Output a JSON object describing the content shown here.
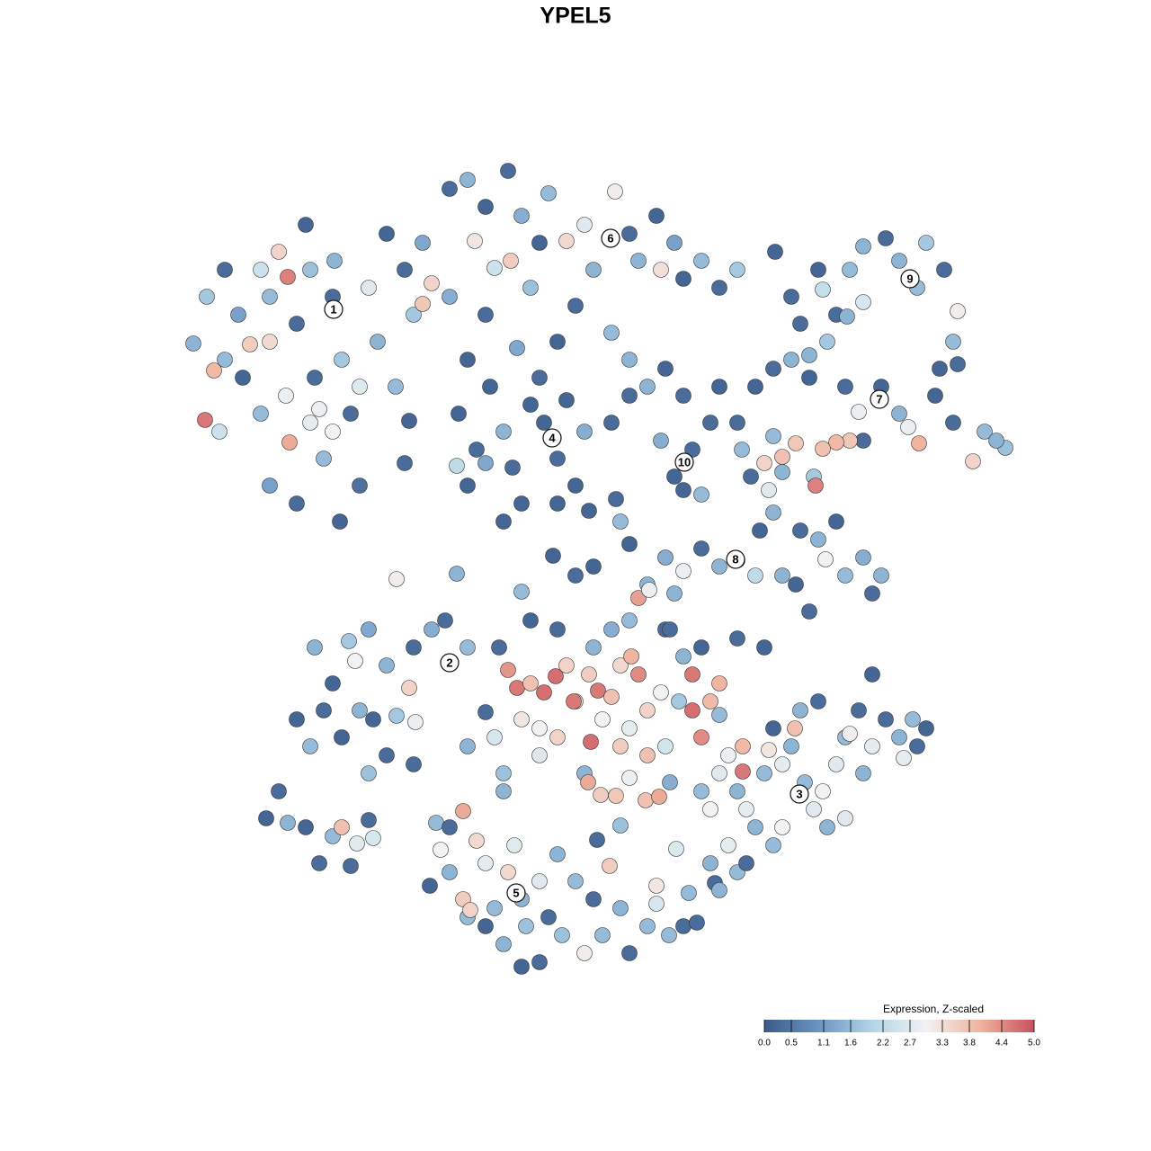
{
  "chart_data": {
    "type": "scatter",
    "title": "YPEL5",
    "xlim": [
      180,
      1140
    ],
    "ylim": [
      1120,
      160
    ],
    "x": [
      215,
      230,
      238,
      228,
      244,
      250,
      265,
      270,
      278,
      290,
      300,
      300,
      310,
      320,
      318,
      322,
      330,
      340,
      345,
      350,
      355,
      360,
      330,
      370,
      372,
      380,
      390,
      400,
      410,
      420,
      430,
      440,
      450,
      460,
      470,
      378,
      300,
      290,
      345,
      370,
      400,
      250,
      480,
      470,
      500,
      520,
      540,
      565,
      580,
      600,
      610,
      630,
      650,
      660,
      684,
      700,
      710,
      730,
      735,
      750,
      760,
      780,
      800,
      820,
      528,
      550,
      568,
      500,
      540,
      590,
      620,
      680,
      700,
      640,
      520,
      575,
      510,
      530,
      520,
      545,
      560,
      570,
      580,
      600,
      605,
      620,
      630,
      640,
      650,
      560,
      590,
      540,
      508,
      620,
      700,
      720,
      740,
      680,
      450,
      455,
      441,
      508,
      580,
      615,
      690,
      700,
      655,
      685,
      735,
      750,
      770,
      780,
      760,
      790,
      800,
      820,
      760,
      862,
      880,
      910,
      915,
      930,
      945,
      960,
      960,
      985,
      1000,
      1020,
      1030,
      1050,
      1065,
      1060,
      1065,
      1045,
      942,
      890,
      900,
      840,
      860,
      880,
      900,
      920,
      940,
      955,
      980,
      1000,
      1010,
      1022,
      1040,
      1060,
      1082,
      1095,
      1118,
      1108,
      960,
      945,
      930,
      915,
      885,
      870,
      860,
      825,
      835,
      850,
      860,
      845,
      855,
      870,
      905,
      907,
      890,
      910,
      918,
      930,
      940,
      960,
      970,
      980,
      900,
      885,
      870,
      820,
      800,
      780,
      760,
      740,
      840,
      350,
      370,
      388,
      395,
      410,
      430,
      455,
      460,
      480,
      495,
      520,
      330,
      345,
      360,
      380,
      400,
      415,
      441,
      462,
      410,
      430,
      460,
      296,
      310,
      320,
      340,
      355,
      370,
      380,
      397,
      410,
      415,
      390,
      565,
      575,
      590,
      605,
      618,
      630,
      640,
      655,
      665,
      680,
      690,
      702,
      710,
      720,
      735,
      755,
      770,
      770,
      790,
      800,
      800,
      760,
      580,
      600,
      620,
      638,
      657,
      670,
      690,
      700,
      720,
      740,
      780,
      810,
      826,
      826,
      600,
      560,
      550,
      520,
      540,
      555,
      590,
      620,
      660,
      680,
      700,
      740,
      780,
      820,
      850,
      640,
      660,
      720,
      710,
      722,
      750,
      745,
      650,
      654,
      668,
      685,
      700,
      718,
      733,
      745,
      780,
      790,
      800,
      820,
      830,
      840,
      850,
      855,
      870,
      880,
      884,
      895,
      905,
      915,
      920,
      930,
      940,
      945,
      955,
      960,
      970,
      970,
      985,
      1000,
      1005,
      1015,
      1020,
      1030,
      870,
      860,
      810,
      790,
      795,
      820,
      830,
      910,
      890,
      860,
      940,
      485,
      490,
      500,
      515,
      515,
      530,
      540,
      550,
      560,
      565,
      572,
      580,
      585,
      600,
      610,
      620,
      625,
      640,
      650,
      660,
      670,
      678,
      690,
      700,
      720,
      730,
      744,
      760,
      775,
      600,
      580,
      560,
      540,
      520,
      500,
      478,
      523,
      690,
      664,
      730,
      766,
      752,
      800
    ],
    "y": [
      382,
      330,
      412,
      467,
      480,
      300,
      350,
      420,
      383,
      300,
      330,
      380,
      280,
      308,
      440,
      492,
      360,
      250,
      300,
      420,
      455,
      510,
      560,
      330,
      290,
      400,
      460,
      540,
      320,
      380,
      260,
      430,
      300,
      350,
      270,
      580,
      540,
      460,
      470,
      480,
      430,
      400,
      315,
      338,
      210,
      200,
      230,
      190,
      240,
      270,
      215,
      268,
      250,
      300,
      213,
      260,
      290,
      240,
      300,
      270,
      310,
      290,
      320,
      300,
      268,
      298,
      290,
      330,
      350,
      320,
      380,
      370,
      400,
      340,
      400,
      387,
      460,
      500,
      540,
      430,
      480,
      520,
      560,
      420,
      470,
      510,
      445,
      540,
      480,
      580,
      450,
      515,
      518,
      560,
      440,
      430,
      410,
      470,
      515,
      468,
      644,
      638,
      658,
      618,
      580,
      605,
      568,
      555,
      490,
      530,
      500,
      550,
      545,
      470,
      430,
      470,
      440,
      280,
      330,
      300,
      322,
      350,
      300,
      274,
      336,
      265,
      290,
      320,
      270,
      300,
      346,
      380,
      405,
      410,
      352,
      360,
      395,
      430,
      410,
      400,
      420,
      380,
      430,
      458,
      430,
      460,
      475,
      493,
      440,
      470,
      513,
      480,
      498,
      490,
      490,
      490,
      492,
      499,
      493,
      508,
      485,
      500,
      530,
      515,
      570,
      590,
      545,
      525,
      530,
      540,
      590,
      600,
      622,
      580,
      640,
      620,
      660,
      640,
      680,
      650,
      640,
      623,
      630,
      610,
      635,
      620,
      640,
      720,
      760,
      713,
      735,
      700,
      740,
      765,
      720,
      700,
      690,
      720,
      800,
      830,
      790,
      820,
      790,
      800,
      796,
      803,
      860,
      840,
      850,
      910,
      880,
      915,
      920,
      960,
      930,
      920,
      938,
      912,
      932,
      963,
      745,
      765,
      760,
      770,
      752,
      740,
      780,
      750,
      768,
      775,
      740,
      730,
      750,
      790,
      770,
      780,
      750,
      790,
      780,
      795,
      760,
      730,
      800,
      810,
      820,
      780,
      825,
      800,
      830,
      810,
      840,
      830,
      820,
      840,
      830,
      858,
      840,
      860,
      820,
      830,
      792,
      720,
      690,
      700,
      720,
      700,
      690,
      700,
      720,
      710,
      720,
      640,
      630,
      650,
      665,
      656,
      660,
      700,
      860,
      870,
      884,
      885,
      865,
      890,
      886,
      870,
      880,
      900,
      860,
      880,
      900,
      920,
      860,
      834,
      850,
      830,
      810,
      870,
      900,
      880,
      920,
      850,
      820,
      816,
      790,
      860,
      830,
      750,
      800,
      820,
      843,
      800,
      830,
      810,
      920,
      940,
      940,
      960,
      982,
      970,
      960,
      780,
      790,
      810,
      910,
      915,
      945,
      970,
      902,
      1000,
      935,
      960,
      1010,
      880,
      970,
      940,
      1000,
      1030,
      980,
      1020,
      950,
      1040,
      980,
      1060,
      1000,
      1040,
      963,
      1010,
      1060,
      1030,
      985,
      1040,
      1030,
      1026,
      1070,
      1075,
      1050,
      1030,
      1020,
      920,
      985,
      1012,
      918,
      934,
      1005,
      993,
      944,
      990
    ],
    "values": [
      1.5,
      1.8,
      3.9,
      4.6,
      2.4,
      0.3,
      1.2,
      0.2,
      3.6,
      2.4,
      1.6,
      3.4,
      3.5,
      4.5,
      2.9,
      4.1,
      0.3,
      0.2,
      1.7,
      0.3,
      2.9,
      1.6,
      0.3,
      0.3,
      1.5,
      1.8,
      0.3,
      0.4,
      2.7,
      1.5,
      0.2,
      1.6,
      0.3,
      1.8,
      1.3,
      0.2,
      1.2,
      1.6,
      2.8,
      3.0,
      2.7,
      1.6,
      3.5,
      3.7,
      0.3,
      1.5,
      0.2,
      0.3,
      1.4,
      0.2,
      1.6,
      3.4,
      2.7,
      1.5,
      3.1,
      0.3,
      1.5,
      0.2,
      3.3,
      1.2,
      0.2,
      1.6,
      0.3,
      1.8,
      3.2,
      2.4,
      3.6,
      1.4,
      0.3,
      1.7,
      0.2,
      1.6,
      1.5,
      0.3,
      0.2,
      1.3,
      0.2,
      0.3,
      0.2,
      0.2,
      1.5,
      0.3,
      0.2,
      0.3,
      0.2,
      0.3,
      0.2,
      0.2,
      1.4,
      0.2,
      0.2,
      1.3,
      2.2,
      0.2,
      0.3,
      1.5,
      0.2,
      0.3,
      0.3,
      0.2,
      3.1,
      1.5,
      1.6,
      0.2,
      1.6,
      0.2,
      0.2,
      0.3,
      1.4,
      0.2,
      0.3,
      1.6,
      0.2,
      0.3,
      0.2,
      0.3,
      0.3,
      0.2,
      0.3,
      0.2,
      2.3,
      0.3,
      1.6,
      1.5,
      2.6,
      0.3,
      1.5,
      1.6,
      1.8,
      0.3,
      3.1,
      1.6,
      0.3,
      0.2,
      1.5,
      0.3,
      1.5,
      0.2,
      0.3,
      1.5,
      0.2,
      1.8,
      0.3,
      2.9,
      0.2,
      1.5,
      2.9,
      4.0,
      0.2,
      0.3,
      3.5,
      1.6,
      1.7,
      1.5,
      0.3,
      3.7,
      3.9,
      3.8,
      3.7,
      3.8,
      1.6,
      1.6,
      0.3,
      3.5,
      1.5,
      0.2,
      2.7,
      1.5,
      1.8,
      4.5,
      0.3,
      1.5,
      3.0,
      0.2,
      1.6,
      1.4,
      0.3,
      1.5,
      0.3,
      0.2,
      1.5,
      1.7,
      1.5,
      0.3,
      2.9,
      1.4,
      2.2,
      1.5,
      0.2,
      1.8,
      3.0,
      1.3,
      1.5,
      3.5,
      0.3,
      1.4,
      0.3,
      1.6,
      0.2,
      1.6,
      0.3,
      0.2,
      1.5,
      0.2,
      1.8,
      2.9,
      1.7,
      0.3,
      0.3,
      0.2,
      0.3,
      1.5,
      0.2,
      0.3,
      1.6,
      3.8,
      2.7,
      0.3,
      2.6,
      0.3,
      4.3,
      4.6,
      3.8,
      4.7,
      4.7,
      3.5,
      3.3,
      3.6,
      4.6,
      3.8,
      3.4,
      4.0,
      4.4,
      3.5,
      3.0,
      1.8,
      4.6,
      4.7,
      3.9,
      1.6,
      4.0,
      1.5,
      3.2,
      3.0,
      3.5,
      4.6,
      4.7,
      3.0,
      3.6,
      2.8,
      3.8,
      2.5,
      4.4,
      2.9,
      3.9,
      4.6,
      2.7,
      1.7,
      2.6,
      1.5,
      0.3,
      0.3,
      0.2,
      0.3,
      1.5,
      1.4,
      1.6,
      0.3,
      0.2,
      0.3,
      0.2,
      0.3,
      0.2,
      1.5,
      4.2,
      2.9,
      1.5,
      0.3,
      1.5,
      4.1,
      3.6,
      3.7,
      2.9,
      3.8,
      4.1,
      1.4,
      1.6,
      3.0,
      2.7,
      1.5,
      2.8,
      1.5,
      1.6,
      3.2,
      2.8,
      1.5,
      3.8,
      1.6,
      2.7,
      3.0,
      1.5,
      2.7,
      1.6,
      3.1,
      0.3,
      1.5,
      2.8,
      0.2,
      0.3,
      1.5,
      2.8,
      1.6,
      0.3,
      0.2,
      3.0,
      1.6,
      2.8,
      1.5,
      0.3,
      1.6,
      0.3,
      0.3,
      1.5,
      0.2,
      2.7,
      1.6,
      3.0,
      1.5,
      4.1,
      3.6,
      3.4,
      2.8,
      1.6,
      1.5,
      3.4,
      2.7,
      1.5,
      1.7,
      2.7,
      0.3,
      1.5,
      1.7,
      1.6,
      3.1,
      0.3,
      1.6,
      3.6,
      1.5,
      0.3,
      1.6,
      3.2,
      1.6,
      0.3,
      0.3,
      0.3,
      0.2,
      1.5,
      0.2,
      1.6,
      0.3,
      0.2,
      3.5,
      1.7,
      0.3,
      2.6,
      1.6,
      2.7,
      1.5
    ],
    "clusters": {
      "labels": [
        "1",
        "2",
        "3",
        "4",
        "5",
        "6",
        "7",
        "8",
        "9",
        "10"
      ],
      "x": [
        371,
        500,
        889,
        614,
        574,
        679,
        978,
        818,
        1012,
        761
      ],
      "y": [
        344,
        737,
        883,
        487,
        993,
        265,
        444,
        622,
        310,
        514
      ]
    },
    "colorbar": {
      "title": "Expression, Z-scaled",
      "lim": [
        0,
        5
      ],
      "ticks": [
        {
          "value": 0,
          "label": "0.0"
        },
        0.5,
        1.1,
        1.6,
        2.2,
        2.7,
        3.3,
        3.8,
        4.4,
        {
          "value": 5,
          "label": "5.0"
        }
      ],
      "colors": [
        "#3b5b89",
        "#6a93c2",
        "#b2d5e6",
        "#f2f2f2",
        "#f0b49f",
        "#c8505d"
      ]
    }
  }
}
